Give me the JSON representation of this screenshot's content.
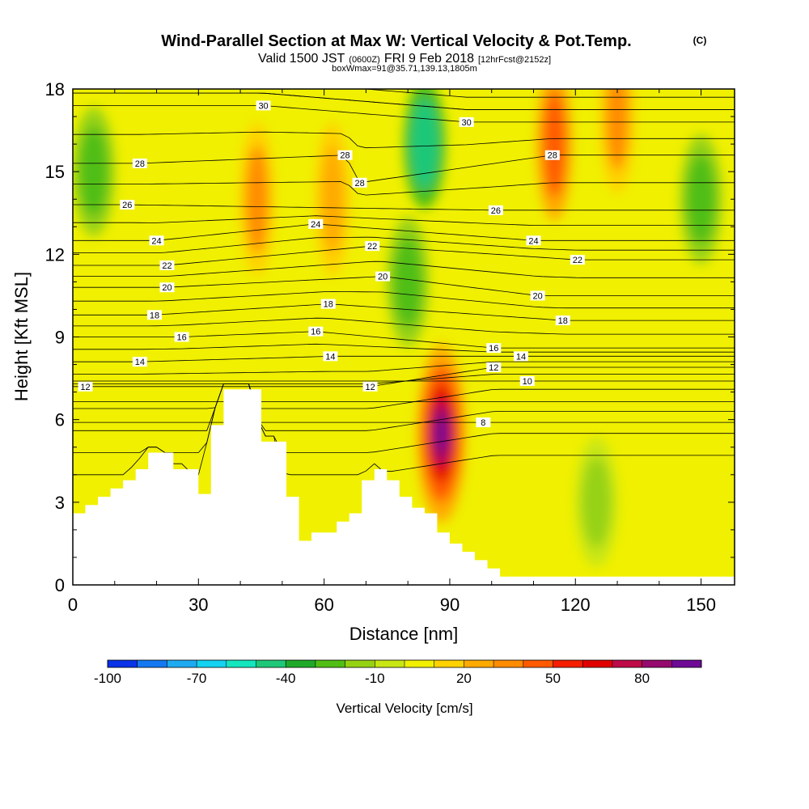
{
  "header": {
    "title": "Wind-Parallel Section at Max W: Vertical Velocity & Pot.Temp.",
    "title_tag": "(C)",
    "subtitle_prefix": "Valid 1500 JST",
    "subtitle_utc": "(0600Z)",
    "subtitle_date": "FRI 9 Feb 2018",
    "subtitle_fcst": "[12hrFcst@2152z]",
    "boxline": "boxWmax=91@35.71,139.13,1805m"
  },
  "chart_data": {
    "type": "heatmap",
    "title": "Wind-Parallel Section at Max W: Vertical Velocity & Pot.Temp.",
    "xlabel": "Distance [nm]",
    "ylabel": "Height [Kft MSL]",
    "xlim": [
      0,
      158
    ],
    "ylim": [
      0,
      18
    ],
    "x_ticks": [
      0,
      30,
      60,
      90,
      120,
      150
    ],
    "y_ticks": [
      0,
      3,
      6,
      9,
      12,
      15,
      18
    ],
    "grid": false,
    "colorbar": {
      "label": "Vertical Velocity [cm/s]",
      "min": -100,
      "max": 100,
      "step": 10,
      "tick_labels": [
        "-100",
        "-70",
        "-40",
        "-10",
        "20",
        "50",
        "80"
      ],
      "colors": [
        "#0a32e6",
        "#1478f0",
        "#1eaaf0",
        "#14d2f0",
        "#14e6be",
        "#1ec878",
        "#1eaa28",
        "#50be14",
        "#96d214",
        "#c8e614",
        "#f0f000",
        "#ffd200",
        "#ffaa00",
        "#ff8c00",
        "#ff5a00",
        "#f51e00",
        "#e10000",
        "#be0a46",
        "#960a6e",
        "#6e0a96"
      ]
    },
    "theta_contour_labels": [
      {
        "value": 30,
        "x": 45.5,
        "y": 17.4
      },
      {
        "value": 30,
        "x": 94,
        "y": 16.8
      },
      {
        "value": 28,
        "x": 16,
        "y": 15.3
      },
      {
        "value": 28,
        "x": 65,
        "y": 15.6
      },
      {
        "value": 28,
        "x": 68.5,
        "y": 14.6
      },
      {
        "value": 28,
        "x": 114.5,
        "y": 15.6
      },
      {
        "value": 26,
        "x": 13,
        "y": 13.8
      },
      {
        "value": 26,
        "x": 101,
        "y": 13.6
      },
      {
        "value": 24,
        "x": 20,
        "y": 12.5
      },
      {
        "value": 24,
        "x": 58,
        "y": 13.1
      },
      {
        "value": 24,
        "x": 110,
        "y": 12.5
      },
      {
        "value": 22,
        "x": 22.5,
        "y": 11.6
      },
      {
        "value": 22,
        "x": 71.5,
        "y": 12.3
      },
      {
        "value": 22,
        "x": 120.5,
        "y": 11.8
      },
      {
        "value": 20,
        "x": 22.5,
        "y": 10.8
      },
      {
        "value": 20,
        "x": 74,
        "y": 11.2
      },
      {
        "value": 20,
        "x": 111,
        "y": 10.5
      },
      {
        "value": 18,
        "x": 19.5,
        "y": 9.8
      },
      {
        "value": 18,
        "x": 61,
        "y": 10.2
      },
      {
        "value": 18,
        "x": 117,
        "y": 9.6
      },
      {
        "value": 16,
        "x": 26,
        "y": 9.0
      },
      {
        "value": 16,
        "x": 58,
        "y": 9.2
      },
      {
        "value": 16,
        "x": 100.5,
        "y": 8.6
      },
      {
        "value": 14,
        "x": 16,
        "y": 8.1
      },
      {
        "value": 14,
        "x": 61.5,
        "y": 8.3
      },
      {
        "value": 14,
        "x": 107,
        "y": 8.3
      },
      {
        "value": 12,
        "x": 3,
        "y": 7.2
      },
      {
        "value": 12,
        "x": 71,
        "y": 7.2
      },
      {
        "value": 12,
        "x": 100.5,
        "y": 7.9
      },
      {
        "value": 10,
        "x": 108.5,
        "y": 7.4
      },
      {
        "value": 8,
        "x": 98,
        "y": 5.9
      }
    ],
    "w_features": [
      {
        "kind": "max",
        "x": 88,
        "y": 5.5,
        "value": 91
      },
      {
        "kind": "updraft",
        "x": 44,
        "y": 14.0,
        "value": 30
      },
      {
        "kind": "updraft",
        "x": 62,
        "y": 14.0,
        "value": 25
      },
      {
        "kind": "updraft",
        "x": 115,
        "y": 16.0,
        "value": 40
      },
      {
        "kind": "updraft",
        "x": 130,
        "y": 17.0,
        "value": 30
      },
      {
        "kind": "downdraft",
        "x": 84,
        "y": 16.0,
        "value": -50
      },
      {
        "kind": "downdraft",
        "x": 80,
        "y": 11.0,
        "value": -30
      },
      {
        "kind": "downdraft",
        "x": 5,
        "y": 15.0,
        "value": -30
      },
      {
        "kind": "downdraft",
        "x": 150,
        "y": 14.0,
        "value": -30
      },
      {
        "kind": "downdraft",
        "x": 125,
        "y": 3.0,
        "value": -15
      }
    ],
    "terrain": {
      "x": [
        0,
        3,
        6,
        9,
        12,
        15,
        18,
        21,
        24,
        27,
        30,
        33,
        36,
        39,
        42,
        45,
        48,
        51,
        54,
        57,
        60,
        63,
        66,
        69,
        72,
        75,
        78,
        81,
        84,
        87,
        90,
        93,
        96,
        99,
        102,
        105,
        108,
        158
      ],
      "height": [
        2.6,
        2.9,
        3.2,
        3.5,
        3.8,
        4.2,
        4.8,
        4.8,
        4.2,
        4.2,
        3.3,
        5.8,
        7.1,
        7.1,
        7.1,
        5.2,
        5.2,
        3.2,
        1.6,
        1.9,
        1.9,
        2.3,
        2.6,
        3.8,
        4.2,
        3.8,
        3.2,
        2.8,
        2.6,
        1.9,
        1.5,
        1.2,
        0.9,
        0.6,
        0.3,
        0.3,
        0.3,
        0.3
      ]
    }
  }
}
